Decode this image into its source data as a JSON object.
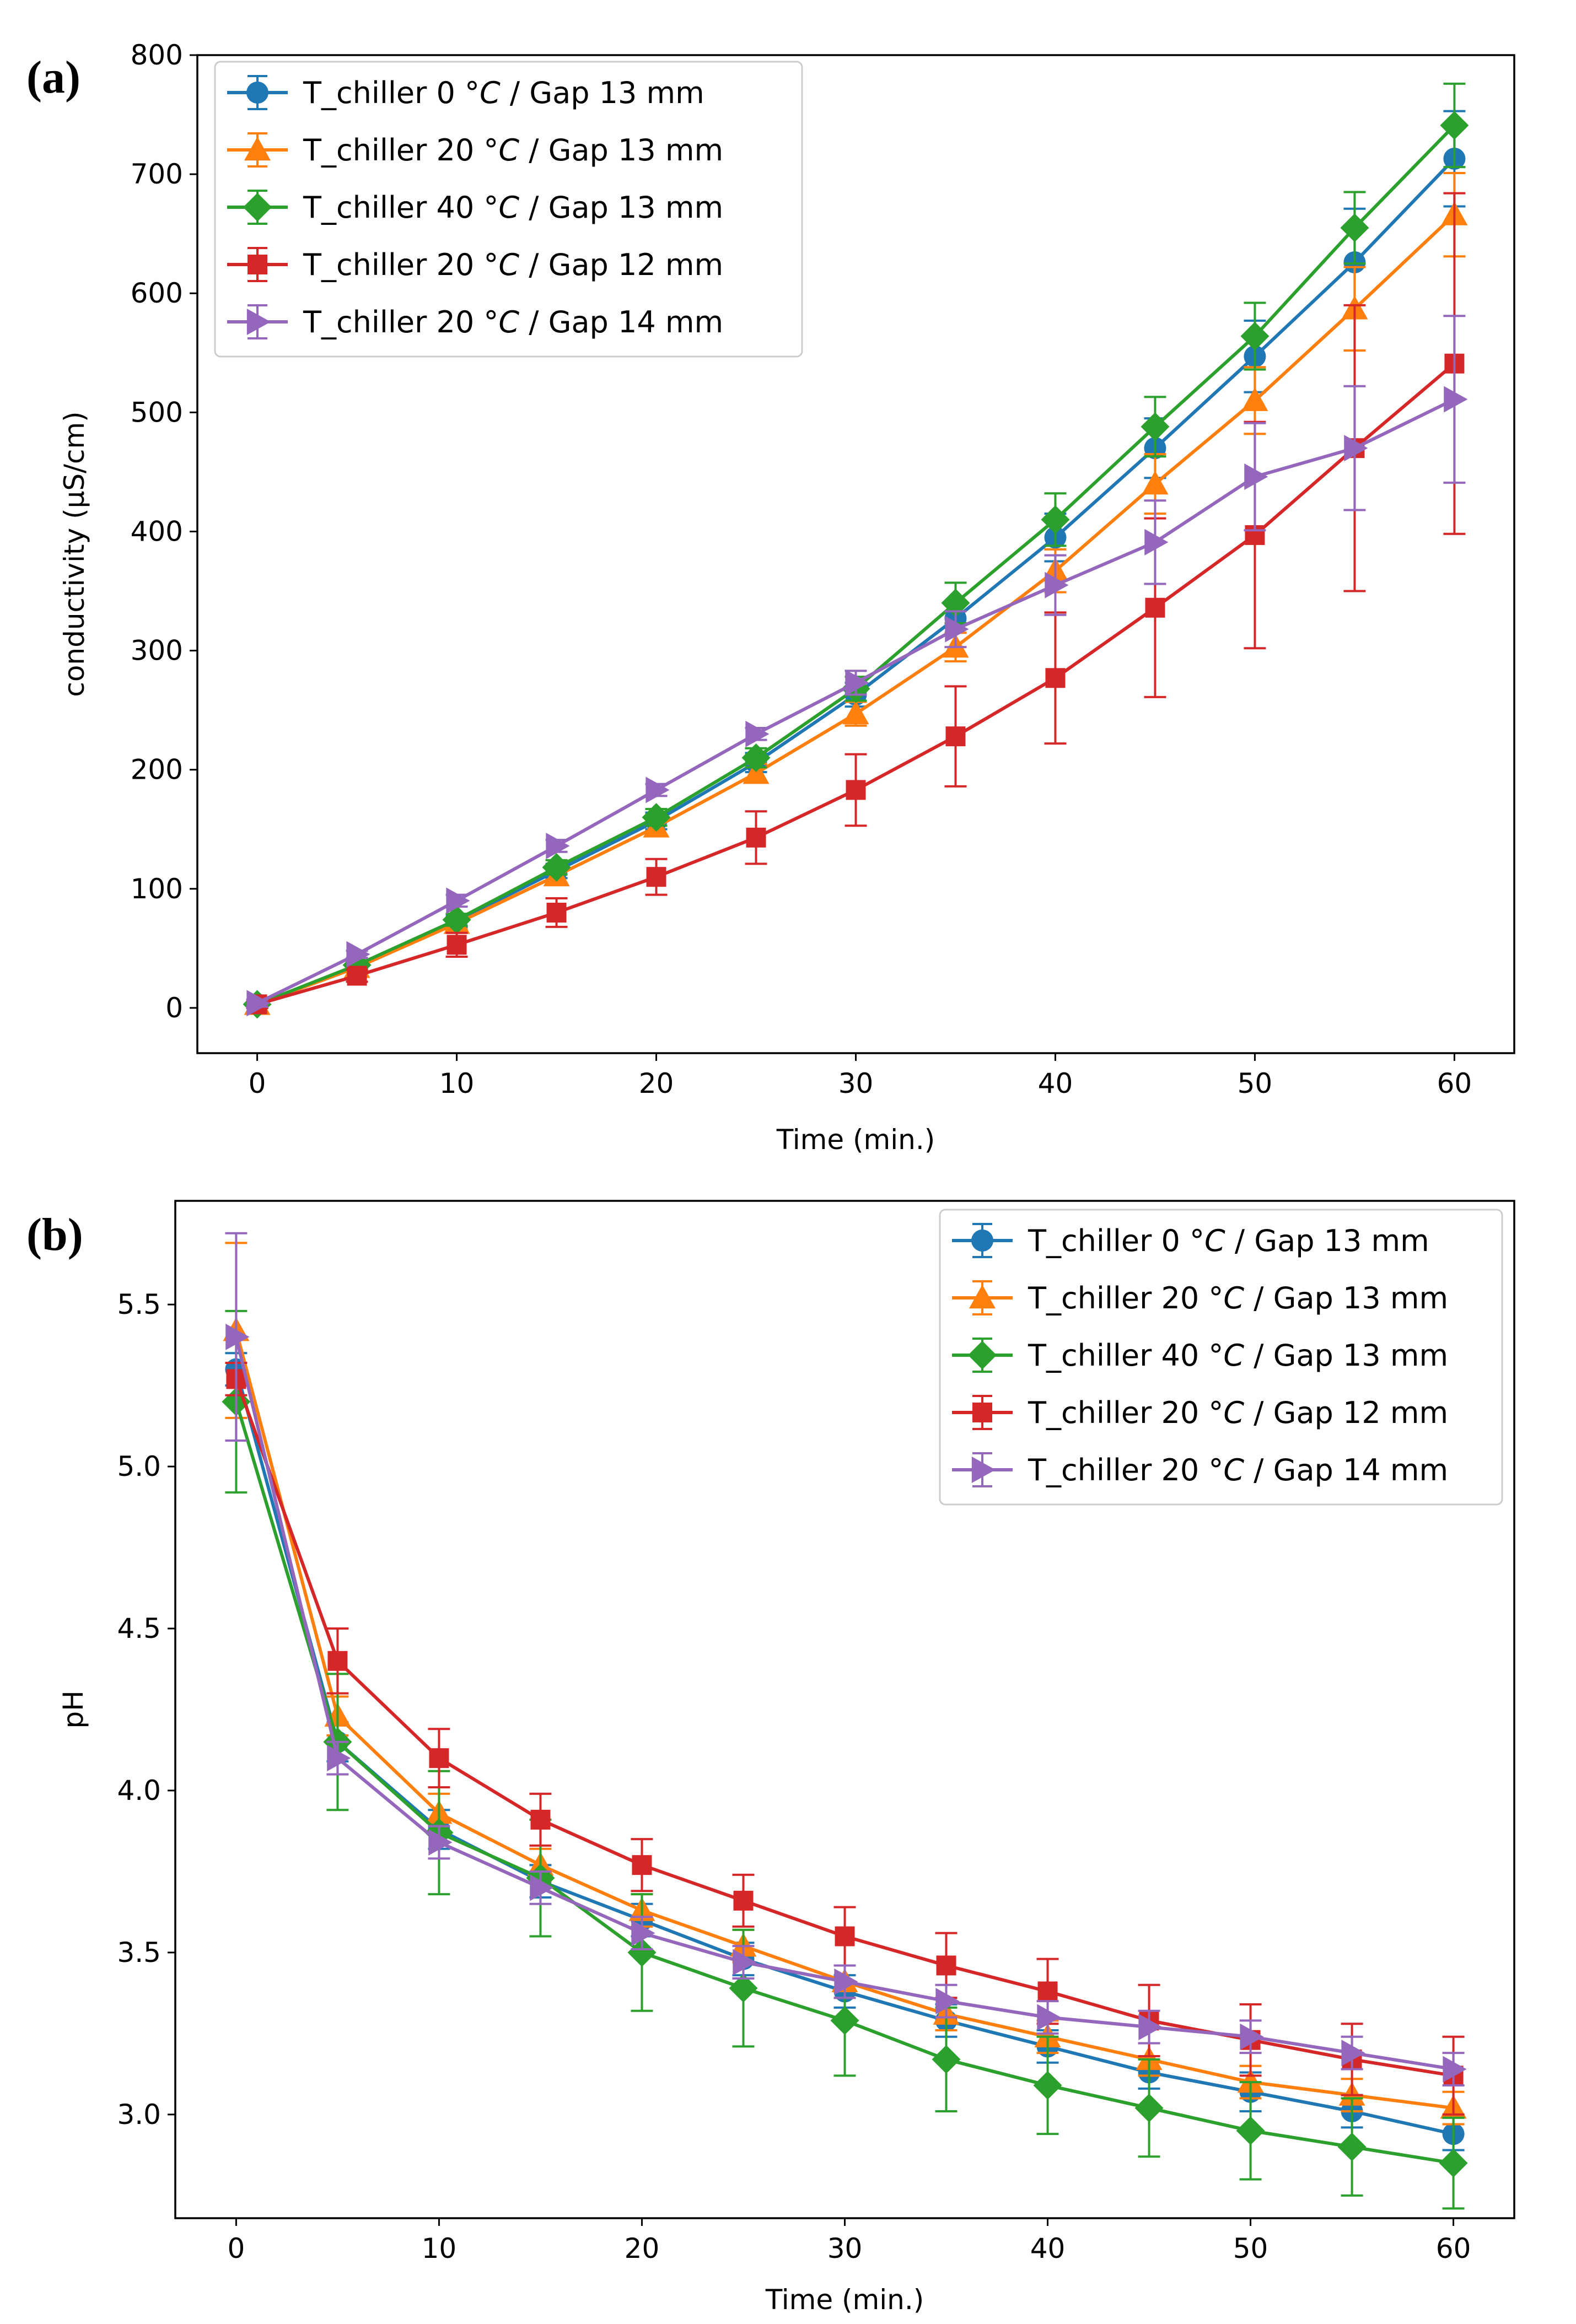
{
  "chart_data": [
    {
      "type": "line",
      "panel_label": "(a)",
      "title": "",
      "xlabel": "Time (min.)",
      "ylabel": "conductivity (μS/cm)",
      "xlim": [
        -3,
        63
      ],
      "ylim": [
        -38,
        800
      ],
      "xticks": [
        0,
        10,
        20,
        30,
        40,
        50,
        60
      ],
      "yticks": [
        0,
        100,
        200,
        300,
        400,
        500,
        600,
        700,
        800
      ],
      "legend_position": "upper-left",
      "x": [
        0,
        5,
        10,
        15,
        20,
        25,
        30,
        35,
        40,
        45,
        50,
        55,
        60
      ],
      "series": [
        {
          "name": "T_chiller 0 °C / Gap 13 mm",
          "legend_prefix": "T_chiller 0 °",
          "legend_italic": "C",
          "legend_suffix": " / Gap 13 mm",
          "color": "#1f77b4",
          "marker": "circle",
          "values": [
            3,
            35,
            73,
            115,
            157,
            206,
            263,
            327,
            395,
            470,
            547,
            626,
            713
          ],
          "errors": [
            3,
            3,
            5,
            6,
            7,
            8,
            10,
            12,
            20,
            25,
            30,
            45,
            40
          ]
        },
        {
          "name": "T_chiller 20 °C / Gap 13 mm",
          "legend_prefix": "T_chiller 20 °",
          "legend_italic": "C",
          "legend_suffix": " / Gap 13 mm",
          "color": "#ff7f0e",
          "marker": "triangle-up",
          "values": [
            3,
            34,
            71,
            111,
            152,
            197,
            247,
            303,
            367,
            440,
            510,
            587,
            666
          ],
          "errors": [
            3,
            3,
            5,
            6,
            7,
            8,
            10,
            12,
            18,
            25,
            28,
            35,
            35
          ]
        },
        {
          "name": "T_chiller 40 °C / Gap 13 mm",
          "legend_prefix": "T_chiller 40 °",
          "legend_italic": "C",
          "legend_suffix": " / Gap 13 mm",
          "color": "#2ca02c",
          "marker": "diamond",
          "values": [
            3,
            36,
            74,
            118,
            160,
            210,
            268,
            340,
            410,
            488,
            564,
            655,
            741
          ],
          "errors": [
            3,
            3,
            5,
            6,
            7,
            8,
            10,
            17,
            22,
            25,
            28,
            30,
            35
          ]
        },
        {
          "name": "T_chiller 20 °C / Gap 12 mm",
          "legend_prefix": "T_chiller 20 °",
          "legend_italic": "C",
          "legend_suffix": " / Gap 12 mm",
          "color": "#d62728",
          "marker": "square",
          "values": [
            3,
            27,
            53,
            80,
            110,
            143,
            183,
            228,
            277,
            336,
            397,
            470,
            541
          ],
          "errors": [
            3,
            5,
            10,
            12,
            15,
            22,
            30,
            42,
            55,
            75,
            95,
            120,
            143
          ]
        },
        {
          "name": "T_chiller 20 °C / Gap 14 mm",
          "legend_prefix": "T_chiller 20 °",
          "legend_italic": "C",
          "legend_suffix": " / Gap 14 mm",
          "color": "#9467bd",
          "marker": "triangle-right",
          "values": [
            4,
            45,
            90,
            136,
            183,
            230,
            273,
            318,
            355,
            391,
            446,
            470,
            511
          ],
          "errors": [
            3,
            3,
            5,
            5,
            5,
            5,
            10,
            15,
            25,
            35,
            45,
            52,
            70
          ]
        }
      ]
    },
    {
      "type": "line",
      "panel_label": "(b)",
      "title": "",
      "xlabel": "Time (min.)",
      "ylabel": "pH",
      "xlim": [
        -3,
        63
      ],
      "ylim": [
        2.68,
        5.82
      ],
      "xticks": [
        0,
        10,
        20,
        30,
        40,
        50,
        60
      ],
      "yticks": [
        3.0,
        3.5,
        4.0,
        4.5,
        5.0,
        5.5
      ],
      "ytick_labels": [
        "3.0",
        "3.5",
        "4.0",
        "4.5",
        "5.0",
        "5.5"
      ],
      "legend_position": "upper-right",
      "x": [
        0,
        5,
        10,
        15,
        20,
        25,
        30,
        35,
        40,
        45,
        50,
        55,
        60
      ],
      "series": [
        {
          "name": "T_chiller 0 °C / Gap 13 mm",
          "legend_prefix": "T_chiller 0 °",
          "legend_italic": "C",
          "legend_suffix": " / Gap 13 mm",
          "color": "#1f77b4",
          "marker": "circle",
          "values": [
            5.3,
            4.15,
            3.88,
            3.72,
            3.6,
            3.48,
            3.38,
            3.29,
            3.21,
            3.13,
            3.07,
            3.01,
            2.94
          ],
          "errors": [
            0.05,
            0.06,
            0.06,
            0.05,
            0.05,
            0.05,
            0.05,
            0.05,
            0.05,
            0.05,
            0.06,
            0.05,
            0.05
          ]
        },
        {
          "name": "T_chiller 20 °C / Gap 13 mm",
          "legend_prefix": "T_chiller 20 °",
          "legend_italic": "C",
          "legend_suffix": " / Gap 13 mm",
          "color": "#ff7f0e",
          "marker": "triangle-up",
          "values": [
            5.42,
            4.23,
            3.93,
            3.77,
            3.63,
            3.52,
            3.41,
            3.31,
            3.24,
            3.17,
            3.1,
            3.06,
            3.02
          ],
          "errors": [
            0.27,
            0.06,
            0.06,
            0.05,
            0.05,
            0.05,
            0.05,
            0.05,
            0.05,
            0.05,
            0.05,
            0.05,
            0.05
          ]
        },
        {
          "name": "T_chiller 40 °C / Gap 13 mm",
          "legend_prefix": "T_chiller 40 °",
          "legend_italic": "C",
          "legend_suffix": " / Gap 13 mm",
          "color": "#2ca02c",
          "marker": "diamond",
          "values": [
            5.2,
            4.15,
            3.87,
            3.73,
            3.5,
            3.39,
            3.29,
            3.17,
            3.09,
            3.02,
            2.95,
            2.9,
            2.85
          ],
          "errors": [
            0.28,
            0.21,
            0.19,
            0.18,
            0.18,
            0.18,
            0.17,
            0.16,
            0.15,
            0.15,
            0.15,
            0.15,
            0.14
          ]
        },
        {
          "name": "T_chiller 20 °C / Gap 12 mm",
          "legend_prefix": "T_chiller 20 °",
          "legend_italic": "C",
          "legend_suffix": " / Gap 12 mm",
          "color": "#d62728",
          "marker": "square",
          "values": [
            5.27,
            4.4,
            4.1,
            3.91,
            3.77,
            3.66,
            3.55,
            3.46,
            3.38,
            3.29,
            3.23,
            3.17,
            3.12
          ],
          "errors": [
            0.05,
            0.1,
            0.09,
            0.08,
            0.08,
            0.08,
            0.09,
            0.1,
            0.1,
            0.11,
            0.11,
            0.11,
            0.12
          ]
        },
        {
          "name": "T_chiller 20 °C / Gap 14 mm",
          "legend_prefix": "T_chiller 20 °",
          "legend_italic": "C",
          "legend_suffix": " / Gap 14 mm",
          "color": "#9467bd",
          "marker": "triangle-right",
          "values": [
            5.4,
            4.1,
            3.84,
            3.7,
            3.56,
            3.47,
            3.41,
            3.35,
            3.3,
            3.27,
            3.24,
            3.19,
            3.14
          ],
          "errors": [
            0.32,
            0.05,
            0.05,
            0.05,
            0.05,
            0.05,
            0.05,
            0.05,
            0.05,
            0.05,
            0.05,
            0.05,
            0.05
          ]
        }
      ]
    }
  ]
}
